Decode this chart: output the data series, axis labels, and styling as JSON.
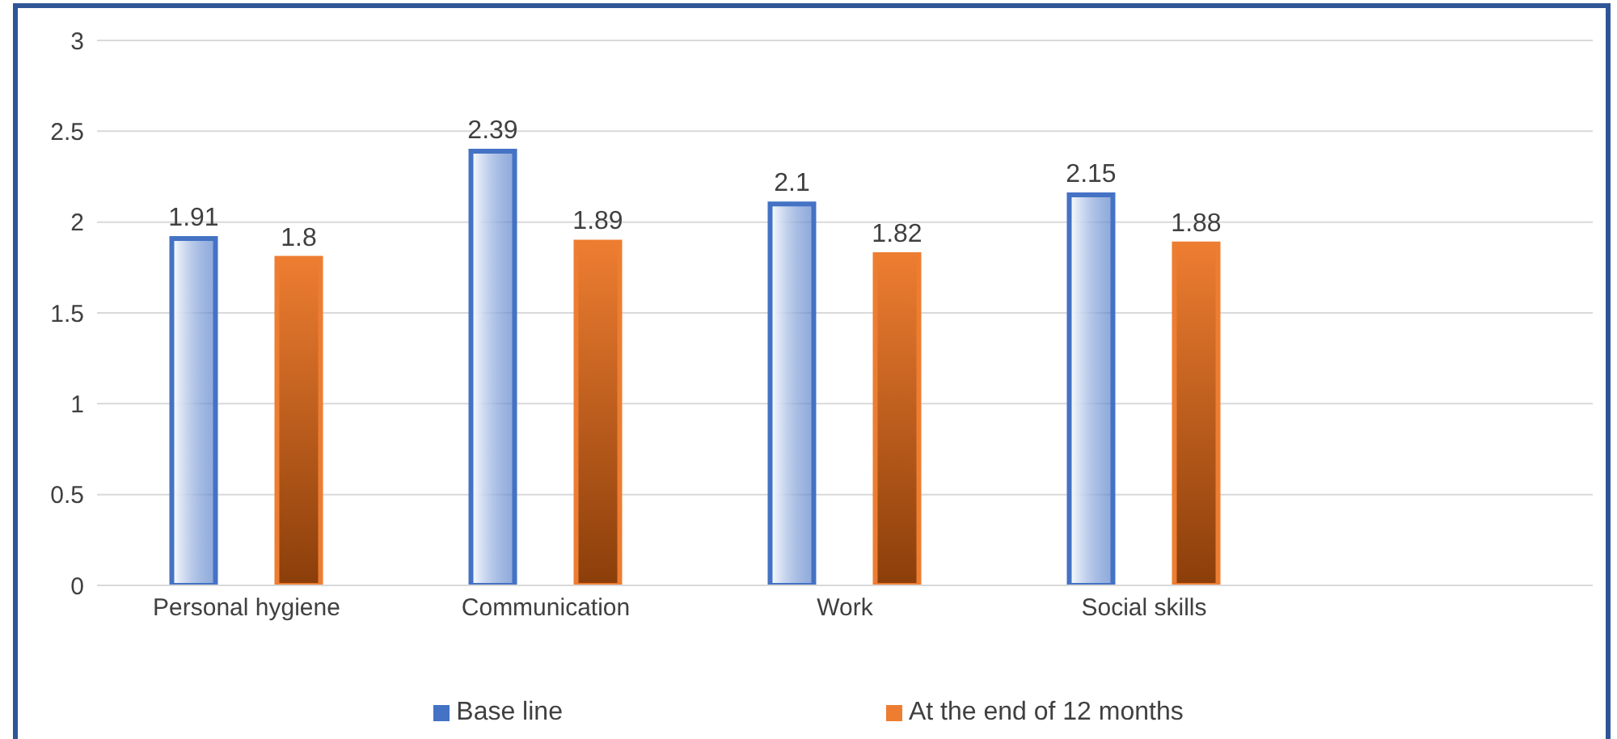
{
  "chart_data": {
    "type": "bar",
    "categories": [
      "Personal hygiene",
      "Communication",
      "Work",
      "Social skills",
      null
    ],
    "series": [
      {
        "name": "Base line",
        "color": "#4472c4",
        "values": [
          1.91,
          2.39,
          2.1,
          2.15,
          null
        ]
      },
      {
        "name": "At the end of 12 months",
        "color": "#ed7d31",
        "values": [
          1.8,
          1.89,
          1.82,
          1.88,
          null
        ]
      }
    ],
    "ylim": [
      0,
      3
    ],
    "yticks": [
      0,
      0.5,
      1,
      1.5,
      2,
      2.5,
      3
    ],
    "grid": "y",
    "legend": "bottom",
    "data_labels": true
  }
}
